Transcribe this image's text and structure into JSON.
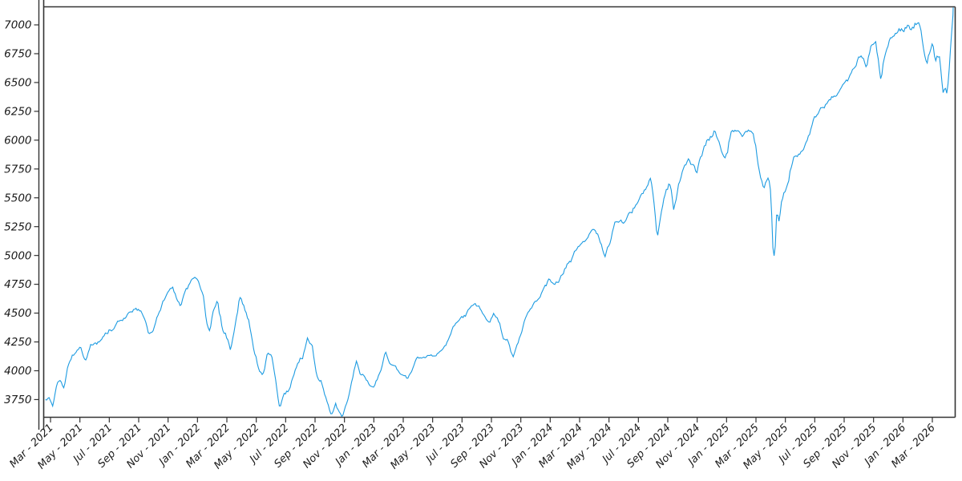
{
  "chart_data": {
    "type": "line",
    "title": "",
    "xlabel": "",
    "ylabel": "",
    "grid": false,
    "legend": false,
    "line_color": "#1d9be1",
    "x_tick_labels": [
      "Mar - 2021",
      "May - 2021",
      "Jul - 2021",
      "Sep - 2021",
      "Nov - 2021",
      "Jan - 2022",
      "Mar - 2022",
      "May - 2022",
      "Jul - 2022",
      "Sep - 2022",
      "Nov - 2022",
      "Jan - 2023",
      "Mar - 2023",
      "May - 2023",
      "Jul - 2023",
      "Sep - 2023",
      "Nov - 2023",
      "Jan - 2024",
      "Mar - 2024",
      "May - 2024",
      "Jul - 2024",
      "Sep - 2024",
      "Nov - 2024",
      "Jan - 2025",
      "Mar - 2025",
      "May - 2025",
      "Jul - 2025",
      "Sep - 2025",
      "Nov - 2025",
      "Jan - 2026",
      "Mar - 2026"
    ],
    "y_tick_values": [
      7000,
      6750,
      6500,
      6250,
      6000,
      5750,
      5500,
      5250,
      5000,
      4750,
      4500,
      4250,
      4000,
      3750
    ],
    "x_unit": "months since Mar 2021 (fractional, ticks every 2 months)",
    "x_axis_range_months": [
      -0.35,
      61.42
    ],
    "y_axis_range": [
      3600,
      7160
    ],
    "points": [
      [
        -0.35,
        3745
      ],
      [
        -0.1,
        3770
      ],
      [
        0.15,
        3705
      ],
      [
        0.45,
        3880
      ],
      [
        0.7,
        3915
      ],
      [
        0.9,
        3855
      ],
      [
        1.15,
        4020
      ],
      [
        1.45,
        4130
      ],
      [
        1.75,
        4180
      ],
      [
        2.05,
        4190
      ],
      [
        2.35,
        4065
      ],
      [
        2.7,
        4200
      ],
      [
        3.0,
        4230
      ],
      [
        3.35,
        4250
      ],
      [
        3.7,
        4290
      ],
      [
        3.95,
        4330
      ],
      [
        4.25,
        4360
      ],
      [
        4.55,
        4410
      ],
      [
        4.85,
        4400
      ],
      [
        5.15,
        4440
      ],
      [
        5.5,
        4480
      ],
      [
        5.8,
        4530
      ],
      [
        6.1,
        4520
      ],
      [
        6.4,
        4440
      ],
      [
        6.7,
        4310
      ],
      [
        7.0,
        4360
      ],
      [
        7.3,
        4470
      ],
      [
        7.65,
        4610
      ],
      [
        8.0,
        4690
      ],
      [
        8.3,
        4700
      ],
      [
        8.6,
        4600
      ],
      [
        8.85,
        4570
      ],
      [
        9.1,
        4640
      ],
      [
        9.4,
        4710
      ],
      [
        9.7,
        4770
      ],
      [
        10.05,
        4795
      ],
      [
        10.4,
        4660
      ],
      [
        10.65,
        4410
      ],
      [
        10.85,
        4330
      ],
      [
        11.1,
        4520
      ],
      [
        11.35,
        4590
      ],
      [
        11.65,
        4380
      ],
      [
        11.95,
        4310
      ],
      [
        12.25,
        4210
      ],
      [
        12.55,
        4420
      ],
      [
        12.85,
        4630
      ],
      [
        13.2,
        4540
      ],
      [
        13.55,
        4400
      ],
      [
        13.9,
        4140
      ],
      [
        14.2,
        4000
      ],
      [
        14.45,
        3935
      ],
      [
        14.75,
        4140
      ],
      [
        15.05,
        4120
      ],
      [
        15.3,
        3900
      ],
      [
        15.6,
        3675
      ],
      [
        15.85,
        3800
      ],
      [
        16.15,
        3820
      ],
      [
        16.5,
        3960
      ],
      [
        16.85,
        4100
      ],
      [
        17.15,
        4140
      ],
      [
        17.45,
        4300
      ],
      [
        17.8,
        4210
      ],
      [
        18.1,
        3960
      ],
      [
        18.45,
        3920
      ],
      [
        18.75,
        3790
      ],
      [
        19.1,
        3620
      ],
      [
        19.4,
        3700
      ],
      [
        19.85,
        3590
      ],
      [
        20.15,
        3750
      ],
      [
        20.45,
        3900
      ],
      [
        20.8,
        4080
      ],
      [
        21.1,
        3950
      ],
      [
        21.4,
        3930
      ],
      [
        21.7,
        3880
      ],
      [
        21.95,
        3850
      ],
      [
        22.25,
        3920
      ],
      [
        22.55,
        4020
      ],
      [
        22.8,
        4150
      ],
      [
        23.1,
        4070
      ],
      [
        23.45,
        4080
      ],
      [
        23.75,
        4000
      ],
      [
        24.05,
        3960
      ],
      [
        24.3,
        3930
      ],
      [
        24.65,
        4030
      ],
      [
        24.95,
        4100
      ],
      [
        25.25,
        4120
      ],
      [
        25.6,
        4140
      ],
      [
        25.9,
        4160
      ],
      [
        26.2,
        4120
      ],
      [
        26.5,
        4180
      ],
      [
        26.85,
        4210
      ],
      [
        27.15,
        4280
      ],
      [
        27.5,
        4380
      ],
      [
        27.85,
        4440
      ],
      [
        28.2,
        4470
      ],
      [
        28.55,
        4550
      ],
      [
        28.9,
        4590
      ],
      [
        29.2,
        4550
      ],
      [
        29.55,
        4480
      ],
      [
        29.85,
        4420
      ],
      [
        30.15,
        4500
      ],
      [
        30.5,
        4420
      ],
      [
        30.8,
        4300
      ],
      [
        31.1,
        4290
      ],
      [
        31.45,
        4120
      ],
      [
        31.75,
        4230
      ],
      [
        32.1,
        4360
      ],
      [
        32.45,
        4500
      ],
      [
        32.8,
        4560
      ],
      [
        33.1,
        4590
      ],
      [
        33.5,
        4700
      ],
      [
        33.9,
        4770
      ],
      [
        34.2,
        4740
      ],
      [
        34.55,
        4780
      ],
      [
        34.9,
        4850
      ],
      [
        35.25,
        4950
      ],
      [
        35.6,
        5000
      ],
      [
        35.95,
        5100
      ],
      [
        36.3,
        5150
      ],
      [
        36.65,
        5200
      ],
      [
        36.95,
        5250
      ],
      [
        37.3,
        5200
      ],
      [
        37.7,
        5020
      ],
      [
        38.05,
        5100
      ],
      [
        38.4,
        5270
      ],
      [
        38.75,
        5310
      ],
      [
        39.05,
        5280
      ],
      [
        39.4,
        5350
      ],
      [
        39.75,
        5430
      ],
      [
        40.1,
        5480
      ],
      [
        40.5,
        5580
      ],
      [
        40.85,
        5670
      ],
      [
        41.1,
        5450
      ],
      [
        41.3,
        5190
      ],
      [
        41.6,
        5400
      ],
      [
        41.9,
        5600
      ],
      [
        42.1,
        5650
      ],
      [
        42.4,
        5410
      ],
      [
        42.75,
        5620
      ],
      [
        43.05,
        5730
      ],
      [
        43.35,
        5820
      ],
      [
        43.65,
        5780
      ],
      [
        43.95,
        5710
      ],
      [
        44.25,
        5870
      ],
      [
        44.6,
        5990
      ],
      [
        44.95,
        6030
      ],
      [
        45.25,
        6090
      ],
      [
        45.55,
        5950
      ],
      [
        45.8,
        5870
      ],
      [
        46.05,
        5890
      ],
      [
        46.3,
        6080
      ],
      [
        46.6,
        6120
      ],
      [
        46.9,
        6040
      ],
      [
        47.2,
        6070
      ],
      [
        47.55,
        6150
      ],
      [
        47.9,
        5980
      ],
      [
        48.2,
        5780
      ],
      [
        48.5,
        5650
      ],
      [
        48.8,
        5690
      ],
      [
        49.0,
        5580
      ],
      [
        49.15,
        5110
      ],
      [
        49.28,
        4983
      ],
      [
        49.42,
        5430
      ],
      [
        49.55,
        5280
      ],
      [
        49.75,
        5490
      ],
      [
        50.0,
        5560
      ],
      [
        50.3,
        5750
      ],
      [
        50.6,
        5890
      ],
      [
        50.9,
        5910
      ],
      [
        51.2,
        5980
      ],
      [
        51.55,
        6090
      ],
      [
        51.9,
        6180
      ],
      [
        52.2,
        6210
      ],
      [
        52.55,
        6250
      ],
      [
        52.9,
        6330
      ],
      [
        53.25,
        6380
      ],
      [
        53.6,
        6450
      ],
      [
        53.95,
        6460
      ],
      [
        54.3,
        6510
      ],
      [
        54.65,
        6600
      ],
      [
        54.95,
        6690
      ],
      [
        55.25,
        6700
      ],
      [
        55.5,
        6660
      ],
      [
        55.85,
        6870
      ],
      [
        56.15,
        6880
      ],
      [
        56.5,
        6570
      ],
      [
        56.8,
        6790
      ],
      [
        57.1,
        6880
      ],
      [
        57.45,
        6940
      ],
      [
        57.75,
        6990
      ],
      [
        58.05,
        6960
      ],
      [
        58.35,
        7010
      ],
      [
        58.6,
        6930
      ],
      [
        58.9,
        7000
      ],
      [
        59.1,
        6990
      ],
      [
        59.35,
        6850
      ],
      [
        59.6,
        6680
      ],
      [
        59.8,
        6760
      ],
      [
        60.0,
        6820
      ],
      [
        60.2,
        6700
      ],
      [
        60.45,
        6750
      ],
      [
        60.62,
        6520
      ],
      [
        60.75,
        6365
      ],
      [
        60.88,
        6480
      ],
      [
        61.0,
        6420
      ],
      [
        61.12,
        6560
      ],
      [
        61.25,
        6800
      ],
      [
        61.42,
        7150
      ]
    ]
  },
  "axis_style": {
    "axis_color": "#333333",
    "tick_label_color": "#1a1a1a",
    "background": "#ffffff"
  },
  "render": {
    "noise_seed": 1234567,
    "noise_scale": 0.0038,
    "points_per_month": 12
  }
}
